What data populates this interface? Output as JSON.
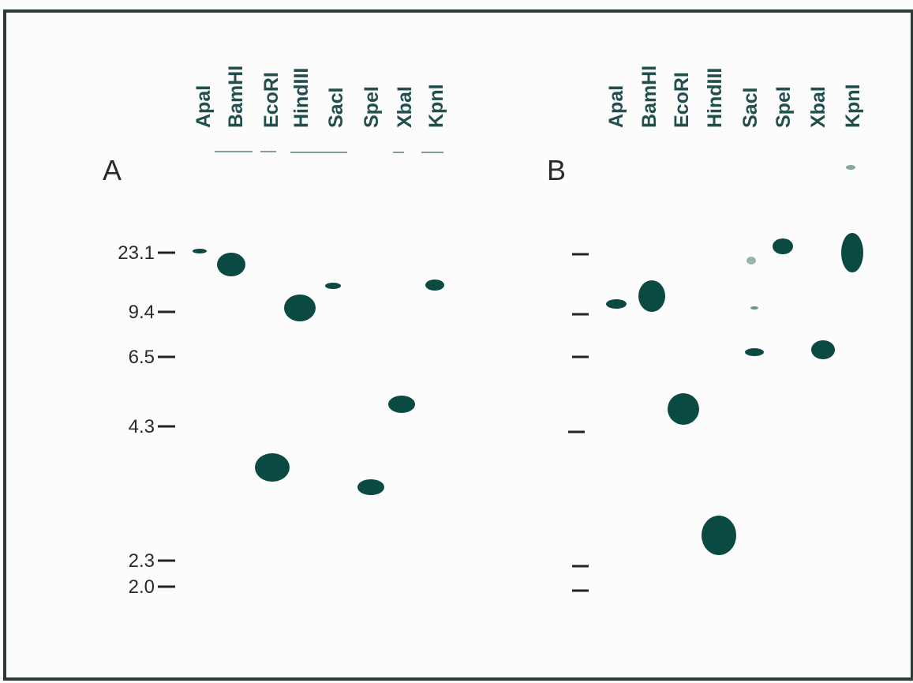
{
  "panels": [
    {
      "label": "A",
      "lanes": [
        "ApaI",
        "BamHI",
        "EcoRI",
        "HindIII",
        "SacI",
        "SpeI",
        "XbaI",
        "KpnI"
      ],
      "markers": [
        "23.1",
        "9.4",
        "6.5",
        "4.3",
        "2.3",
        "2.0"
      ]
    },
    {
      "label": "B",
      "lanes": [
        "ApaI",
        "BamHI",
        "EcoRI",
        "HindIII",
        "SacI",
        "SpeI",
        "XbaI",
        "KpnI"
      ]
    }
  ]
}
